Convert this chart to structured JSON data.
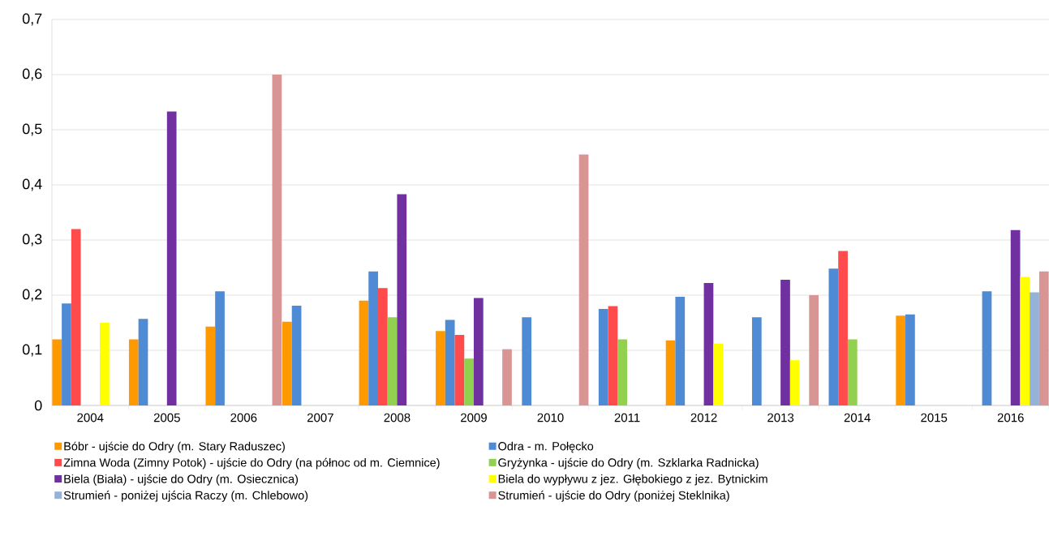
{
  "chart_data": {
    "type": "bar",
    "categories": [
      "2004",
      "2005",
      "2006",
      "2007",
      "2008",
      "2009",
      "2010",
      "2011",
      "2012",
      "2013",
      "2014",
      "2015",
      "2016"
    ],
    "series": [
      {
        "name": "Bóbr - ujście do Odry (m. Stary Raduszec)",
        "color": "#ff9900",
        "values": [
          0.12,
          0.12,
          0.143,
          0.152,
          0.19,
          0.135,
          null,
          null,
          0.118,
          null,
          null,
          0.163,
          null
        ]
      },
      {
        "name": "Odra - m. Połęcko",
        "color": "#4f8ad4",
        "values": [
          0.185,
          0.157,
          0.207,
          0.181,
          0.243,
          0.155,
          0.16,
          0.175,
          0.197,
          0.16,
          0.248,
          0.165,
          0.207
        ]
      },
      {
        "name": "Zimna Woda (Zimny Potok) - ujście do Odry (na północ od m. Ciemnice)",
        "color": "#ff4b4b",
        "values": [
          0.32,
          null,
          null,
          null,
          0.213,
          0.128,
          null,
          0.18,
          null,
          null,
          0.28,
          null,
          null
        ]
      },
      {
        "name": "Gryżynka - ujście do Odry (m. Szklarka Radnicka)",
        "color": "#92d050",
        "values": [
          null,
          null,
          null,
          null,
          0.16,
          0.085,
          null,
          0.12,
          null,
          null,
          0.12,
          null,
          null
        ]
      },
      {
        "name": "Biela (Biała) - ujście do Odry (m. Osiecznica)",
        "color": "#7030a0",
        "values": [
          null,
          0.533,
          null,
          null,
          0.383,
          0.195,
          null,
          null,
          0.222,
          0.228,
          null,
          null,
          0.318
        ]
      },
      {
        "name": "Biela do wypływu z jez. Głębokiego z jez. Bytnickim",
        "color": "#ffff00",
        "values": [
          0.15,
          null,
          null,
          null,
          null,
          null,
          null,
          null,
          0.112,
          0.082,
          null,
          null,
          0.233
        ]
      },
      {
        "name": "Strumień - poniżej ujścia Raczy (m. Chlebowo)",
        "color": "#95b3d7",
        "values": [
          null,
          null,
          null,
          null,
          null,
          null,
          null,
          null,
          null,
          null,
          null,
          null,
          0.205
        ]
      },
      {
        "name": "Strumień - ujście do Odry (poniżej Steklnika)",
        "color": "#d99594",
        "values": [
          null,
          null,
          0.6,
          null,
          null,
          0.102,
          0.455,
          null,
          null,
          0.2,
          null,
          null,
          0.243
        ]
      }
    ],
    "ylim": [
      0,
      0.7
    ],
    "yticks": [
      0,
      {
        "value": 0.1,
        "label": "0,1"
      },
      {
        "value": 0.2,
        "label": "0,2"
      },
      {
        "value": 0.3,
        "label": "0,3"
      },
      {
        "value": 0.4,
        "label": "0,4"
      },
      {
        "value": 0.5,
        "label": "0,5"
      },
      {
        "value": 0.6,
        "label": "0,6"
      },
      {
        "value": 0.7,
        "label": "0,7"
      }
    ],
    "grid": "y",
    "legend": "bottom"
  }
}
